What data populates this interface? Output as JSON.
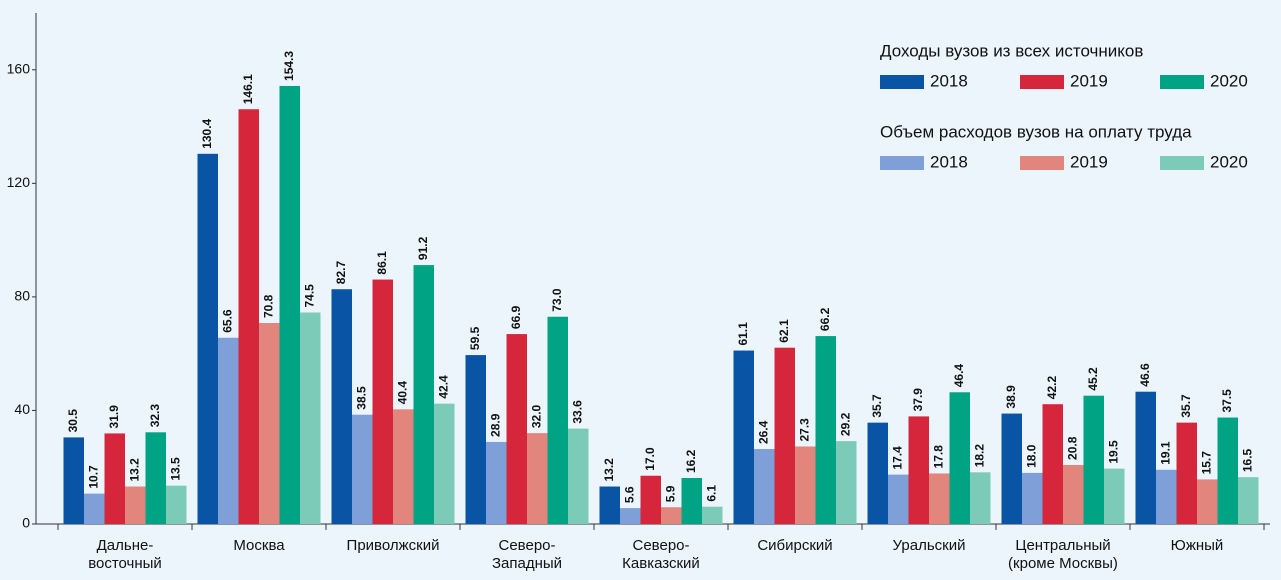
{
  "chart_data": {
    "type": "bar",
    "categories": [
      [
        "Дальне-",
        "восточный"
      ],
      [
        "Москва"
      ],
      [
        "Приволжский"
      ],
      [
        "Северо-",
        "Западный"
      ],
      [
        "Северо-",
        "Кавказский"
      ],
      [
        "Сибирский"
      ],
      [
        "Уральский"
      ],
      [
        "Центральный",
        "(кроме Москвы)"
      ],
      [
        "Южный"
      ]
    ],
    "legend_titles": [
      "Доходы вузов из всех источников",
      "Объем расходов вузов на оплату труда"
    ],
    "series": [
      {
        "name": "2018",
        "color": "#0a54a6",
        "values": [
          30.5,
          130.4,
          82.7,
          59.5,
          13.2,
          61.1,
          35.7,
          38.9,
          46.6
        ],
        "value_labels": [
          "30.5",
          "130.4",
          "82.7",
          "59.5",
          "13.2",
          "61.1",
          "35.7",
          "38.9",
          "46.6"
        ]
      },
      {
        "name": "2018",
        "color": "#7f9fd8",
        "values": [
          10.7,
          65.6,
          38.5,
          28.9,
          5.6,
          26.4,
          17.4,
          18.0,
          19.1
        ],
        "value_labels": [
          "10.7",
          "65.6",
          "38.5",
          "28.9",
          "5.6",
          "26.4",
          "17.4",
          "18.0",
          "19.1"
        ]
      },
      {
        "name": "2019",
        "color": "#d6263b",
        "values": [
          31.9,
          146.1,
          86.1,
          66.9,
          17.0,
          62.1,
          37.9,
          42.2,
          35.7
        ],
        "value_labels": [
          "31.9",
          "146.1",
          "86.1",
          "66.9",
          "17.0",
          "62.1",
          "37.9",
          "42.2",
          "35.7"
        ]
      },
      {
        "name": "2019",
        "color": "#e2857d",
        "values": [
          13.2,
          70.8,
          40.4,
          32.0,
          5.9,
          27.3,
          17.8,
          20.8,
          15.7
        ],
        "value_labels": [
          "13.2",
          "70.8",
          "40.4",
          "32.0",
          "5.9",
          "27.3",
          "17.8",
          "20.8",
          "15.7"
        ]
      },
      {
        "name": "2020",
        "color": "#00a383",
        "values": [
          32.3,
          154.3,
          91.2,
          73.0,
          16.2,
          66.2,
          46.4,
          45.2,
          37.5
        ],
        "value_labels": [
          "32.3",
          "154.3",
          "91.2",
          "73.0",
          "16.2",
          "66.2",
          "46.4",
          "45.2",
          "37.5"
        ]
      },
      {
        "name": "2020",
        "color": "#7ccbb8",
        "values": [
          13.5,
          74.5,
          42.4,
          33.6,
          6.1,
          29.2,
          18.2,
          19.5,
          16.5
        ],
        "value_labels": [
          "13.5",
          "74.5",
          "42.4",
          "33.6",
          "6.1",
          "29.2",
          "18.2",
          "19.5",
          "16.5"
        ]
      }
    ],
    "ylim": [
      0,
      180
    ],
    "yticks": [
      0,
      40,
      80,
      120,
      160
    ],
    "grid": false
  }
}
